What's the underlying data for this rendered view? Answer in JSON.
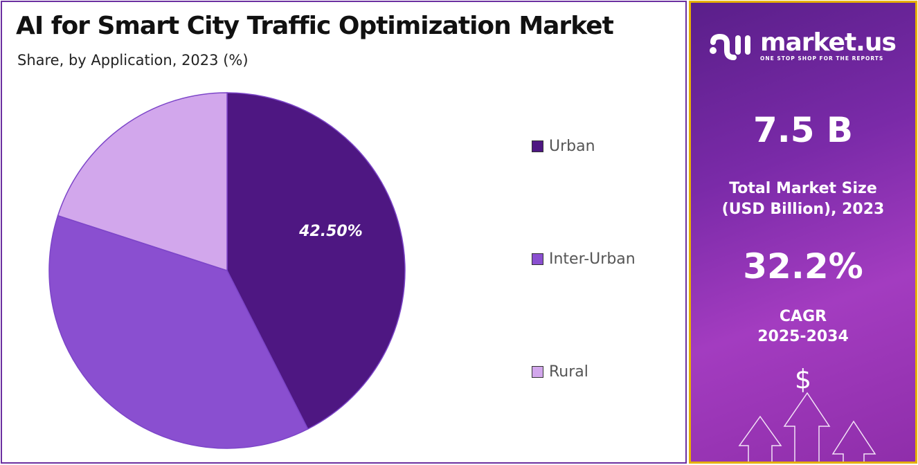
{
  "chart_data": {
    "type": "pie",
    "title": "AI for Smart City Traffic Optimization Market",
    "subtitle": "Share, by Application, 2023 (%)",
    "categories": [
      "Urban",
      "Inter-Urban",
      "Rural"
    ],
    "values": [
      42.5,
      37.5,
      20.0
    ],
    "colors": [
      "#4e1782",
      "#8a4fd0",
      "#d2a7ec"
    ],
    "data_labels": [
      "42.50%"
    ],
    "legend_placement": "right"
  },
  "side_panel": {
    "brand": "market.us",
    "tagline": "ONE STOP SHOP FOR THE REPORTS",
    "market_size": "7.5 B",
    "market_size_label_1": "Total Market Size",
    "market_size_label_2": "(USD Billion), 2023",
    "cagr": "32.2%",
    "cagr_label": "CAGR",
    "cagr_period": "2025-2034",
    "dollar": "$"
  }
}
